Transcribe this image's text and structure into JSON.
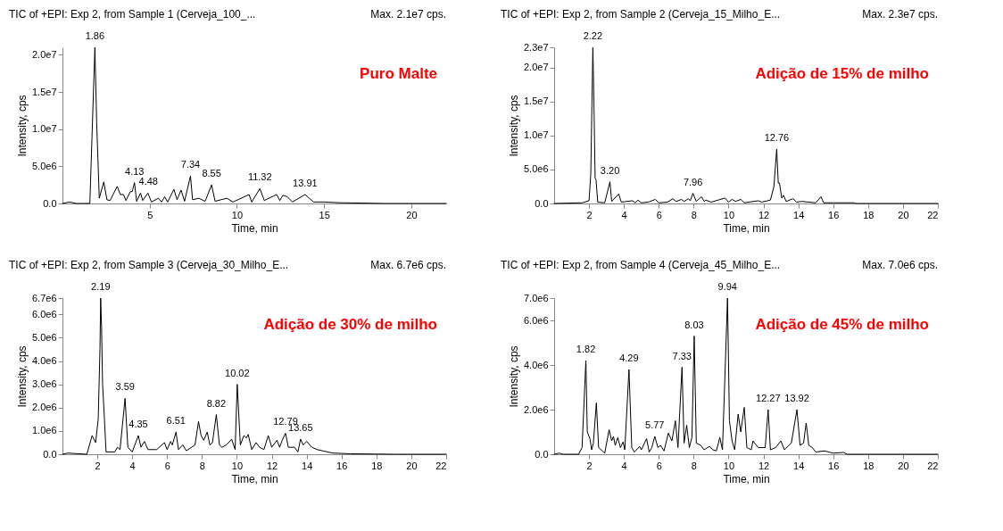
{
  "chart_data": [
    {
      "type": "line",
      "title": "TIC of +EPI: Exp 2, from Sample 1 (Cerveja_100_...",
      "subtitle": "Max. 2.1e7 cps.",
      "xlabel": "Time, min",
      "ylabel": "Intensity, cps",
      "grid": false,
      "xlim": [
        0,
        22
      ],
      "xticks": [
        5,
        10,
        15,
        20
      ],
      "ylim": [
        0,
        21000000.0
      ],
      "yticks": [
        {
          "value": 0,
          "label": "0.0"
        },
        {
          "value": 5000000,
          "label": "5.0e6"
        },
        {
          "value": 10000000,
          "label": "1.0e7"
        },
        {
          "value": 15000000,
          "label": "1.5e7"
        },
        {
          "value": 20000000,
          "label": "2.0e7"
        }
      ],
      "series": [
        {
          "color": "#000000",
          "x": [
            0,
            0.4,
            0.8,
            1.57,
            1.86,
            1.96,
            2.11,
            2.37,
            2.55,
            2.73,
            3.14,
            3.32,
            3.5,
            3.64,
            3.89,
            4.0,
            4.13,
            4.25,
            4.48,
            4.6,
            4.9,
            5.1,
            5.5,
            5.68,
            5.86,
            6.03,
            6.39,
            6.57,
            6.8,
            7.0,
            7.34,
            7.46,
            7.82,
            8.18,
            8.55,
            8.75,
            9.42,
            9.78,
            10.7,
            10.85,
            11.32,
            11.57,
            12.1,
            12.28,
            12.46,
            12.64,
            12.9,
            13.18,
            13.91,
            14.15,
            14.4,
            15.0,
            15.86,
            18.5,
            19,
            22
          ],
          "values": [
            0,
            200000.0,
            0,
            0,
            21000000.0,
            11000000.0,
            700000.0,
            2900000.0,
            500000.0,
            400000.0,
            2300000.0,
            1200000.0,
            1200000.0,
            400000.0,
            1600000.0,
            1600000.0,
            2800000.0,
            300000.0,
            1400000.0,
            400000.0,
            1400000.0,
            200000.0,
            700000.0,
            200000.0,
            900000.0,
            200000.0,
            1900000.0,
            500000.0,
            1800000.0,
            300000.0,
            3700000.0,
            500000.0,
            700000.0,
            300000.0,
            2500000.0,
            300000.0,
            700000.0,
            200000.0,
            1200000.0,
            200000.0,
            2000000.0,
            400000.0,
            1000000.0,
            1200000.0,
            400000.0,
            1100000.0,
            900000.0,
            200000.0,
            1200000.0,
            700000.0,
            200000.0,
            200000.0,
            100000.0,
            0,
            0,
            0
          ]
        }
      ],
      "annotations": [
        "Puro Malte",
        {
          "text": "1.86",
          "x": 1.86,
          "y": 21000000.0
        },
        {
          "text": "4.13",
          "x": 4.13,
          "y": 2800000.0
        },
        {
          "text": "4.48",
          "x": 4.48,
          "y": 1400000.0
        },
        {
          "text": "7.34",
          "x": 7.34,
          "y": 3700000.0
        },
        {
          "text": "8.55",
          "x": 8.55,
          "y": 2500000.0
        },
        {
          "text": "11.32",
          "x": 11.32,
          "y": 2000000.0
        },
        {
          "text": "13.91",
          "x": 13.91,
          "y": 1200000.0
        }
      ]
    },
    {
      "type": "line",
      "title": "TIC of +EPI: Exp 2, from Sample 2 (Cerveja_15_Milho_E...",
      "subtitle": "Max. 2.3e7 cps.",
      "xlabel": "Time, min",
      "ylabel": "Intensity, cps",
      "grid": false,
      "xlim": [
        0,
        22
      ],
      "xticks": [
        2,
        4,
        6,
        8,
        10,
        12,
        14,
        16,
        18,
        20,
        22
      ],
      "ylim": [
        0,
        23000000.0
      ],
      "yticks": [
        {
          "value": 0,
          "label": "0.0"
        },
        {
          "value": 5000000,
          "label": "5.0e6"
        },
        {
          "value": 10000000,
          "label": "1.0e7"
        },
        {
          "value": 15000000,
          "label": "1.5e7"
        },
        {
          "value": 20000000,
          "label": "2.0e7"
        },
        {
          "value": 23000000,
          "label": "2.3e7"
        }
      ],
      "series": [
        {
          "color": "#000000",
          "x": [
            0,
            1.6,
            2.0,
            2.1,
            2.22,
            2.28,
            2.35,
            2.4,
            2.5,
            2.9,
            3.2,
            3.3,
            3.7,
            3.85,
            4.5,
            4.65,
            4.8,
            5.0,
            5.4,
            5.8,
            6.0,
            6.5,
            6.8,
            7.0,
            7.3,
            7.45,
            7.7,
            7.8,
            7.96,
            8.15,
            8.45,
            8.6,
            8.7,
            9.0,
            9.4,
            9.8,
            10.0,
            10.2,
            10.4,
            10.7,
            10.9,
            11.7,
            11.9,
            12.4,
            12.6,
            12.76,
            12.85,
            12.92,
            13.05,
            13.15,
            13.3,
            13.7,
            13.9,
            14.2,
            15.0,
            15.3,
            15.45,
            16,
            17.2,
            17.3,
            22
          ],
          "values": [
            0,
            100000.0,
            400000.0,
            4300000.0,
            23000000.0,
            15000000.0,
            3700000.0,
            3500000.0,
            200000.0,
            100000.0,
            3200000.0,
            300000.0,
            1400000.0,
            200000.0,
            400000.0,
            100000.0,
            500000.0,
            100000.0,
            200000.0,
            600000.0,
            100000.0,
            200000.0,
            700000.0,
            300000.0,
            600000.0,
            300000.0,
            700000.0,
            400000.0,
            1500000.0,
            300000.0,
            1000000.0,
            300000.0,
            500000.0,
            200000.0,
            500000.0,
            800000.0,
            200000.0,
            600000.0,
            300000.0,
            600000.0,
            100000.0,
            400000.0,
            200000.0,
            500000.0,
            2500000.0,
            8000000.0,
            3000000.0,
            3000000.0,
            800000.0,
            1200000.0,
            300000.0,
            700000.0,
            200000.0,
            300000.0,
            100000.0,
            1000000.0,
            100000.0,
            100000.0,
            100000.0,
            0,
            0
          ]
        }
      ],
      "annotations": [
        "Adição de 15% de milho",
        {
          "text": "2.22",
          "x": 2.22,
          "y": 23000000.0
        },
        {
          "text": "3.20",
          "x": 3.2,
          "y": 3200000.0
        },
        {
          "text": "7.96",
          "x": 7.96,
          "y": 1500000.0
        },
        {
          "text": "12.76",
          "x": 12.76,
          "y": 8000000.0
        }
      ]
    },
    {
      "type": "line",
      "title": "TIC of +EPI: Exp 2, from Sample 3 (Cerveja_30_Milho_E...",
      "subtitle": "Max. 6.7e6 cps.",
      "xlabel": "Time, min",
      "ylabel": "Intensity, cps",
      "grid": false,
      "xlim": [
        0,
        22
      ],
      "xticks": [
        2,
        4,
        6,
        8,
        10,
        12,
        14,
        16,
        18,
        20,
        22
      ],
      "ylim": [
        0,
        6700000.0
      ],
      "yticks": [
        {
          "value": 0,
          "label": "0.0"
        },
        {
          "value": 1000000,
          "label": "1.0e6"
        },
        {
          "value": 2000000,
          "label": "2.0e6"
        },
        {
          "value": 3000000,
          "label": "3.0e6"
        },
        {
          "value": 4000000,
          "label": "4.0e6"
        },
        {
          "value": 5000000,
          "label": "5.0e6"
        },
        {
          "value": 6000000,
          "label": "6.0e6"
        },
        {
          "value": 6700000,
          "label": "6.7e6"
        }
      ],
      "series": [
        {
          "color": "#000000",
          "x": [
            0,
            0.3,
            1.4,
            1.7,
            1.9,
            2.05,
            2.15,
            2.19,
            2.24,
            2.3,
            2.4,
            2.5,
            3.0,
            3.15,
            3.3,
            3.59,
            3.75,
            4.0,
            4.35,
            4.5,
            4.7,
            4.9,
            5.4,
            5.85,
            6.0,
            6.2,
            6.3,
            6.51,
            6.65,
            6.9,
            7.1,
            7.4,
            7.6,
            7.8,
            7.95,
            8.1,
            8.3,
            8.45,
            8.6,
            8.82,
            9.0,
            9.15,
            9.4,
            9.7,
            9.9,
            10.02,
            10.2,
            10.4,
            10.55,
            10.65,
            10.85,
            11.1,
            11.3,
            11.55,
            11.8,
            12.0,
            12.3,
            12.45,
            12.6,
            12.79,
            12.95,
            13.3,
            13.5,
            13.65,
            13.8,
            14.0,
            14.3,
            14.6,
            14.9,
            15.5,
            16.5,
            19,
            22
          ],
          "values": [
            0,
            50000.0,
            0,
            800000.0,
            500000.0,
            1500000.0,
            4500000.0,
            6700000.0,
            5500000.0,
            3000000.0,
            1600000.0,
            100000.0,
            100000.0,
            300000.0,
            200000.0,
            2400000.0,
            300000.0,
            100000.0,
            800000.0,
            300000.0,
            550000.0,
            200000.0,
            200000.0,
            500000.0,
            200000.0,
            550000.0,
            400000.0,
            950000.0,
            200000.0,
            400000.0,
            150000.0,
            300000.0,
            400000.0,
            1400000.0,
            800000.0,
            600000.0,
            950000.0,
            400000.0,
            500000.0,
            1700000.0,
            400000.0,
            300000.0,
            400000.0,
            650000.0,
            200000.0,
            3000000.0,
            400000.0,
            800000.0,
            700000.0,
            850000.0,
            200000.0,
            500000.0,
            300000.0,
            200000.0,
            800000.0,
            300000.0,
            600000.0,
            300000.0,
            600000.0,
            900000.0,
            300000.0,
            300000.0,
            100000.0,
            650000.0,
            400000.0,
            550000.0,
            300000.0,
            200000.0,
            150000.0,
            50000.0,
            20000.0,
            0,
            0
          ]
        }
      ],
      "annotations": [
        "Adição de 30% de milho",
        {
          "text": "2.19",
          "x": 2.19,
          "y": 6700000.0
        },
        {
          "text": "3.59",
          "x": 3.59,
          "y": 2400000.0
        },
        {
          "text": "4.35",
          "x": 4.35,
          "y": 800000.0
        },
        {
          "text": "6.51",
          "x": 6.51,
          "y": 950000.0
        },
        {
          "text": "8.82",
          "x": 8.82,
          "y": 1700000.0
        },
        {
          "text": "10.02",
          "x": 10.02,
          "y": 3000000.0
        },
        {
          "text": "12.79",
          "x": 12.79,
          "y": 900000.0
        },
        {
          "text": "13.65",
          "x": 13.65,
          "y": 650000.0
        }
      ]
    },
    {
      "type": "line",
      "title": "TIC of +EPI: Exp 2, from Sample 4 (Cerveja_45_Milho_E...",
      "subtitle": "Max. 7.0e6 cps.",
      "xlabel": "Time, min",
      "ylabel": "Intensity, cps",
      "grid": false,
      "xlim": [
        0,
        22
      ],
      "xticks": [
        2,
        4,
        6,
        8,
        10,
        12,
        14,
        16,
        18,
        20,
        22
      ],
      "ylim": [
        0,
        7000000.0
      ],
      "yticks": [
        {
          "value": 0,
          "label": "0.0"
        },
        {
          "value": 2000000,
          "label": "2.0e6"
        },
        {
          "value": 4000000,
          "label": "4.0e6"
        },
        {
          "value": 6000000,
          "label": "6.0e6"
        },
        {
          "value": 7000000,
          "label": "7.0e6"
        }
      ],
      "series": [
        {
          "color": "#000000",
          "x": [
            0,
            0.3,
            0.5,
            1.4,
            1.6,
            1.82,
            1.9,
            2.05,
            2.15,
            2.25,
            2.42,
            2.55,
            2.9,
            3.15,
            3.3,
            3.4,
            3.5,
            3.65,
            3.8,
            3.95,
            4.05,
            4.29,
            4.45,
            4.6,
            4.9,
            5.0,
            5.3,
            5.45,
            5.6,
            5.77,
            5.95,
            6.1,
            6.3,
            6.55,
            6.75,
            6.95,
            7.1,
            7.33,
            7.45,
            7.6,
            7.75,
            7.9,
            8.03,
            8.15,
            8.4,
            8.6,
            8.9,
            9.1,
            9.3,
            9.5,
            9.65,
            9.94,
            10.05,
            10.2,
            10.35,
            10.55,
            10.7,
            10.9,
            11.05,
            11.3,
            11.4,
            11.7,
            12.1,
            12.27,
            12.4,
            12.7,
            13.0,
            13.2,
            13.6,
            13.92,
            14.1,
            14.3,
            14.45,
            14.6,
            14.8,
            15.0,
            15.5,
            16.0,
            16.6,
            16.8,
            22
          ],
          "values": [
            0,
            50000.0,
            0,
            0,
            300000.0,
            4200000.0,
            1000000.0,
            700000.0,
            200000.0,
            500000.0,
            2300000.0,
            300000.0,
            50000.0,
            1100000.0,
            600000.0,
            800000.0,
            400000.0,
            750000.0,
            300000.0,
            550000.0,
            200000.0,
            3800000.0,
            300000.0,
            100000.0,
            350000.0,
            200000.0,
            700000.0,
            100000.0,
            300000.0,
            800000.0,
            300000.0,
            400000.0,
            150000.0,
            950000.0,
            600000.0,
            1500000.0,
            300000.0,
            3900000.0,
            500000.0,
            1300000.0,
            300000.0,
            750000.0,
            5300000.0,
            500000.0,
            400000.0,
            200000.0,
            350000.0,
            200000.0,
            150000.0,
            750000.0,
            200000.0,
            7000000.0,
            1500000.0,
            600000.0,
            200000.0,
            1800000.0,
            1000000.0,
            2100000.0,
            300000.0,
            200000.0,
            600000.0,
            300000.0,
            300000.0,
            2000000.0,
            200000.0,
            300000.0,
            600000.0,
            200000.0,
            500000.0,
            2000000.0,
            400000.0,
            500000.0,
            1400000.0,
            400000.0,
            300000.0,
            100000.0,
            150000.0,
            50000.0,
            80000.0,
            0,
            0
          ]
        }
      ],
      "annotations": [
        "Adição de 45% de milho",
        {
          "text": "1.82",
          "x": 1.82,
          "y": 4200000.0
        },
        {
          "text": "4.29",
          "x": 4.29,
          "y": 3800000.0
        },
        {
          "text": "5.77",
          "x": 5.77,
          "y": 800000.0
        },
        {
          "text": "7.33",
          "x": 7.33,
          "y": 3900000.0
        },
        {
          "text": "8.03",
          "x": 8.03,
          "y": 5300000.0
        },
        {
          "text": "9.94",
          "x": 9.94,
          "y": 7000000.0
        },
        {
          "text": "12.27",
          "x": 12.27,
          "y": 2000000.0
        },
        {
          "text": "13.92",
          "x": 13.92,
          "y": 2000000.0
        }
      ]
    }
  ]
}
